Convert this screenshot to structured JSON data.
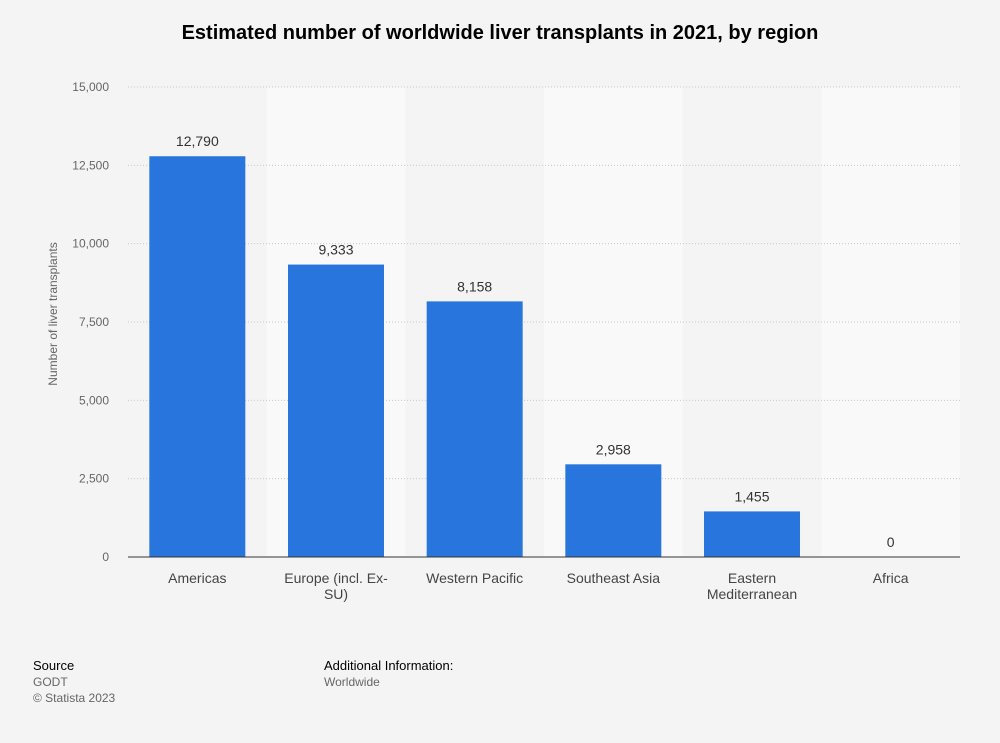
{
  "title": "Estimated number of worldwide liver transplants in 2021, by region",
  "chart_data": {
    "type": "bar",
    "categories": [
      "Americas",
      "Europe (incl. Ex-SU)",
      "Western Pacific",
      "Southeast Asia",
      "Eastern Mediterranean",
      "Africa"
    ],
    "category_lines": [
      [
        "Americas"
      ],
      [
        "Europe (incl. Ex-",
        "SU)"
      ],
      [
        "Western Pacific"
      ],
      [
        "Southeast Asia"
      ],
      [
        "Eastern",
        "Mediterranean"
      ],
      [
        "Africa"
      ]
    ],
    "values": [
      12790,
      9333,
      8158,
      2958,
      1455,
      0
    ],
    "value_labels": [
      "12,790",
      "9,333",
      "8,158",
      "2,958",
      "1,455",
      "0"
    ],
    "ylabel": "Number of liver transplants",
    "xlabel": "",
    "ylim": [
      0,
      15000
    ],
    "yticks": [
      0,
      2500,
      5000,
      7500,
      10000,
      12500,
      15000
    ],
    "ytick_labels": [
      "0",
      "2,500",
      "5,000",
      "7,500",
      "10,000",
      "12,500",
      "15,000"
    ],
    "grid": true,
    "bar_color": "#2876dd"
  },
  "footer": {
    "source_label": "Source",
    "source_value": "GODT",
    "copyright": "© Statista 2023",
    "additional_label": "Additional Information:",
    "additional_value": "Worldwide"
  }
}
